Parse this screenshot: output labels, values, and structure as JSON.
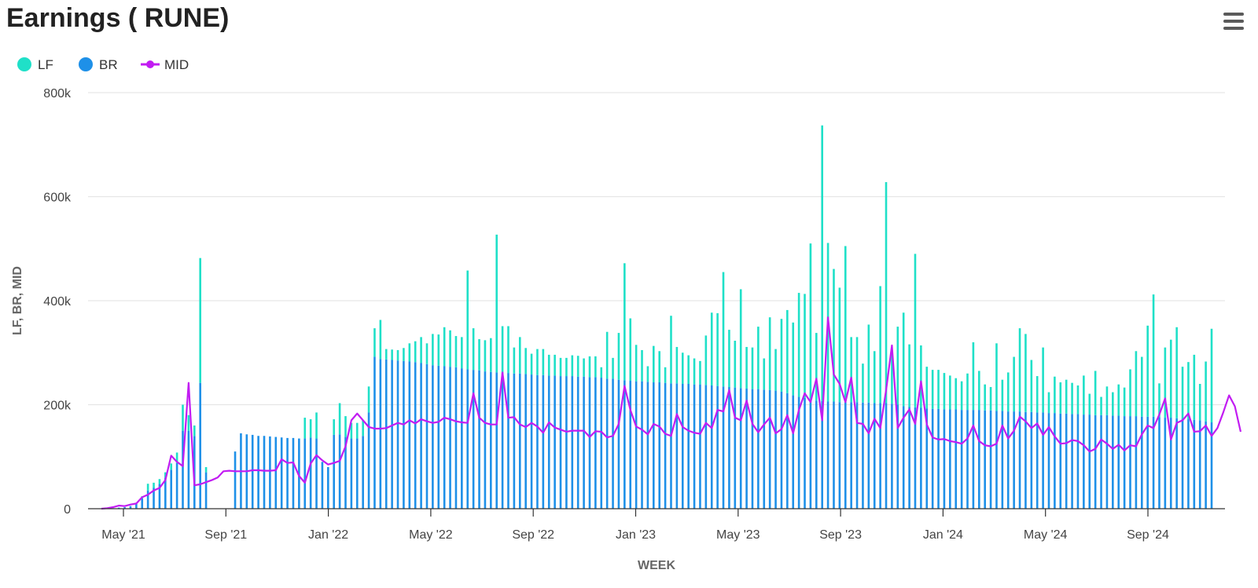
{
  "title": "Earnings ( RUNE)",
  "menu": {
    "icon": "hamburger-menu-icon"
  },
  "colors": {
    "LF": "#1fe0c8",
    "BR": "#1e90e8",
    "MID": "#c21cf2",
    "grid": "#e6e6e6",
    "axis": "#333333"
  },
  "chart_data": {
    "type": "bar",
    "stacked": true,
    "title": "Earnings ( RUNE)",
    "xlabel": "WEEK",
    "ylabel": "LF, BR, MID",
    "ylim": [
      0,
      800000
    ],
    "y_ticks": [
      0,
      200000,
      400000,
      600000,
      800000
    ],
    "y_tick_labels": [
      "0",
      "200k",
      "400k",
      "600k",
      "800k"
    ],
    "x_tick_labels": [
      "May '21",
      "Sep '21",
      "Jan '22",
      "May '22",
      "Sep '22",
      "Jan '23",
      "May '23",
      "Sep '23",
      "Jan '24",
      "May '24",
      "Sep '24"
    ],
    "grid": true,
    "legend": "top-left",
    "week_count": 192,
    "series": [
      {
        "name": "LF",
        "type": "bar",
        "values": [
          0,
          0,
          0,
          0,
          0,
          0,
          0,
          4000,
          13000,
          10000,
          9000,
          10000,
          12000,
          20000,
          50000,
          30000,
          20000,
          240000,
          10000,
          0,
          0,
          0,
          0,
          0,
          0,
          0,
          0,
          0,
          0,
          0,
          0,
          0,
          0,
          0,
          0,
          40000,
          35000,
          50000,
          0,
          0,
          30000,
          60000,
          40000,
          30000,
          30000,
          30000,
          50000,
          55000,
          75000,
          20000,
          20000,
          20000,
          25000,
          35000,
          40000,
          50000,
          40000,
          60000,
          60000,
          75000,
          70000,
          60000,
          60000,
          190000,
          80000,
          60000,
          60000,
          65000,
          265000,
          90000,
          90000,
          50000,
          70000,
          50000,
          40000,
          50000,
          50000,
          40000,
          40000,
          35000,
          35000,
          40000,
          40000,
          35000,
          40000,
          40000,
          20000,
          90000,
          40000,
          90000,
          225000,
          120000,
          70000,
          60000,
          30000,
          70000,
          60000,
          30000,
          130000,
          70000,
          60000,
          55000,
          50000,
          45000,
          95000,
          140000,
          140000,
          220000,
          110000,
          90000,
          190000,
          80000,
          80000,
          120000,
          60000,
          140000,
          80000,
          140000,
          160000,
          140000,
          200000,
          200000,
          300000,
          130000,
          530000,
          305000,
          255000,
          220000,
          300000,
          125000,
          125000,
          75000,
          150000,
          100000,
          225000,
          425000,
          100000,
          150000,
          180000,
          120000,
          295000,
          120000,
          80000,
          75000,
          75000,
          70000,
          65000,
          60000,
          55000,
          70000,
          130000,
          75000,
          50000,
          45000,
          130000,
          60000,
          75000,
          105000,
          160000,
          150000,
          100000,
          70000,
          125000,
          40000,
          70000,
          60000,
          65000,
          60000,
          55000,
          75000,
          40000,
          85000,
          35000,
          55000,
          45000,
          60000,
          55000,
          90000,
          125000,
          115000,
          175000,
          235000,
          65000,
          135000,
          150000,
          175000,
          100000,
          110000,
          125000,
          70000,
          115000,
          180000,
          250000,
          200000,
          135000
        ]
      },
      {
        "name": "BR",
        "type": "bar",
        "values": [
          0,
          0,
          1000,
          2000,
          3000,
          5000,
          10000,
          20000,
          35000,
          40000,
          48000,
          60000,
          75000,
          88000,
          150000,
          150000,
          140000,
          242000,
          70000,
          0,
          0,
          0,
          0,
          110000,
          145000,
          143000,
          142000,
          140000,
          140000,
          139000,
          138000,
          137000,
          136000,
          136000,
          135000,
          135000,
          137000,
          135000,
          90000,
          80000,
          142000,
          143000,
          138000,
          135000,
          135000,
          140000,
          185000,
          292000,
          288000,
          287000,
          286000,
          285000,
          284000,
          283000,
          282000,
          280000,
          278000,
          276000,
          275000,
          274000,
          273000,
          272000,
          270000,
          268000,
          267000,
          266000,
          264000,
          263000,
          262000,
          261000,
          261000,
          260000,
          260000,
          259000,
          258000,
          257000,
          257000,
          256000,
          256000,
          255000,
          255000,
          255000,
          254000,
          254000,
          253000,
          253000,
          252000,
          250000,
          250000,
          248000,
          247000,
          246000,
          245000,
          245000,
          244000,
          243000,
          243000,
          242000,
          241000,
          241000,
          240000,
          240000,
          239000,
          239000,
          238000,
          237000,
          236000,
          235000,
          234000,
          233000,
          232000,
          231000,
          230000,
          230000,
          229000,
          228000,
          227000,
          225000,
          222000,
          218000,
          215000,
          213000,
          210000,
          208000,
          207000,
          206000,
          206000,
          205000,
          205000,
          205000,
          205000,
          204000,
          204000,
          203000,
          203000,
          203000,
          202000,
          200000,
          197000,
          196000,
          195000,
          194000,
          193000,
          192000,
          192000,
          191000,
          191000,
          191000,
          190000,
          190000,
          190000,
          190000,
          189000,
          189000,
          188000,
          188000,
          187000,
          187000,
          187000,
          186000,
          186000,
          185000,
          185000,
          184000,
          184000,
          183000,
          183000,
          182000,
          182000,
          181000,
          181000,
          180000,
          180000,
          180000,
          179000,
          179000,
          178000,
          178000,
          178000,
          177000,
          177000,
          177000,
          176000,
          175000,
          175000,
          174000,
          173000,
          172000,
          171000,
          170000,
          168000,
          166000,
          164000,
          162000
        ]
      },
      {
        "name": "MID",
        "type": "line",
        "values": [
          0,
          1000,
          3000,
          6000,
          5000,
          8000,
          10000,
          22000,
          27000,
          35000,
          40000,
          55000,
          102000,
          90000,
          82000,
          242000,
          45000,
          47000,
          51000,
          55000,
          60000,
          72000,
          73000,
          72000,
          72000,
          72000,
          74000,
          74000,
          73000,
          73000,
          74000,
          95000,
          88000,
          89000,
          63000,
          50000,
          87000,
          103000,
          93000,
          85000,
          88000,
          92000,
          120000,
          170000,
          183000,
          170000,
          157000,
          154000,
          154000,
          155000,
          160000,
          165000,
          162000,
          170000,
          164000,
          172000,
          168000,
          165000,
          167000,
          175000,
          172000,
          168000,
          166000,
          165000,
          222000,
          175000,
          165000,
          162000,
          162000,
          262000,
          175000,
          176000,
          162000,
          157000,
          165000,
          158000,
          146000,
          166000,
          156000,
          152000,
          148000,
          150000,
          150000,
          150000,
          138000,
          149000,
          148000,
          137000,
          140000,
          163000,
          236000,
          190000,
          158000,
          152000,
          143000,
          163000,
          158000,
          144000,
          140000,
          182000,
          157000,
          150000,
          146000,
          144000,
          165000,
          155000,
          190000,
          187000,
          228000,
          175000,
          170000,
          208000,
          163000,
          147000,
          162000,
          175000,
          145000,
          153000,
          180000,
          145000,
          190000,
          222000,
          205000,
          250000,
          170000,
          368000,
          258000,
          240000,
          205000,
          252000,
          165000,
          163000,
          145000,
          173000,
          155000,
          228000,
          314000,
          155000,
          175000,
          191000,
          163000,
          245000,
          162000,
          137000,
          133000,
          134000,
          130000,
          128000,
          125000,
          135000,
          160000,
          130000,
          122000,
          120000,
          125000,
          160000,
          135000,
          150000,
          177000,
          168000,
          155000,
          164000,
          142000,
          157000,
          139000,
          125000,
          126000,
          132000,
          130000,
          122000,
          110000,
          115000,
          133000,
          125000,
          115000,
          123000,
          112000,
          122000,
          120000,
          143000,
          160000,
          155000,
          181000,
          212000,
          133000,
          165000,
          170000,
          183000,
          148000,
          149000,
          160000,
          140000,
          155000,
          185000,
          218000,
          197000,
          148000
        ]
      }
    ]
  },
  "legend_items": [
    {
      "label": "LF"
    },
    {
      "label": "BR"
    },
    {
      "label": "MID"
    }
  ]
}
